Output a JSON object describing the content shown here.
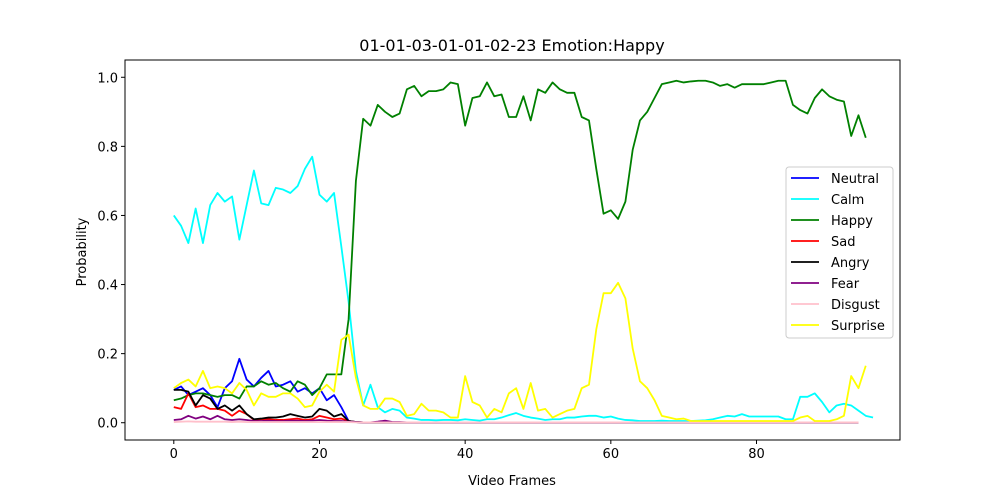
{
  "chart_data": {
    "type": "line",
    "title": "01-01-03-01-01-02-23 Emotion:Happy",
    "xlabel": "Video Frames",
    "ylabel": "Probability",
    "xlim": [
      -6.7,
      99.7
    ],
    "ylim": [
      -0.05,
      1.05
    ],
    "xticks": [
      0,
      20,
      40,
      60,
      80
    ],
    "yticks": [
      0.0,
      0.2,
      0.4,
      0.6,
      0.8,
      1.0
    ],
    "ytick_labels": [
      "0.0",
      "0.2",
      "0.4",
      "0.6",
      "0.8",
      "1.0"
    ],
    "grid": false,
    "legend_position": "center-right",
    "series": [
      {
        "name": "Neutral",
        "color": "#0000ff",
        "values": [
          0.095,
          0.105,
          0.08,
          0.09,
          0.1,
          0.08,
          0.045,
          0.1,
          0.12,
          0.185,
          0.125,
          0.105,
          0.13,
          0.15,
          0.105,
          0.11,
          0.12,
          0.09,
          0.1,
          0.085,
          0.1,
          0.065,
          0.08,
          0.045,
          0.005,
          0.002,
          0.001,
          0.001,
          0.001,
          0.001,
          0.001,
          0.001,
          0.001,
          0.001,
          0.001,
          0.001,
          0.001,
          0.001,
          0.001,
          0.001,
          0.001,
          0.001,
          0.001,
          0.001,
          0.001,
          0.001,
          0.001,
          0.001,
          0.001,
          0.001,
          0.001,
          0.001,
          0.001,
          0.001,
          0.001,
          0.001,
          0.001,
          0.001,
          0.001,
          0.001,
          0.001,
          0.001,
          0.001,
          0.001,
          0.001,
          0.001,
          0.001,
          0.001,
          0.001,
          0.001,
          0.001,
          0.001,
          0.001,
          0.001,
          0.001,
          0.001,
          0.001,
          0.001,
          0.001,
          0.001,
          0.001,
          0.001,
          0.001,
          0.001,
          0.001,
          0.001,
          0.001,
          0.001,
          0.001,
          0.001,
          0.001,
          0.001,
          0.001,
          0.001,
          0.001
        ]
      },
      {
        "name": "Calm",
        "color": "#00ffff",
        "values": [
          0.6,
          0.57,
          0.52,
          0.62,
          0.52,
          0.63,
          0.665,
          0.64,
          0.655,
          0.53,
          0.63,
          0.73,
          0.635,
          0.63,
          0.68,
          0.675,
          0.665,
          0.685,
          0.735,
          0.77,
          0.66,
          0.64,
          0.665,
          0.51,
          0.35,
          0.15,
          0.05,
          0.11,
          0.045,
          0.03,
          0.04,
          0.035,
          0.015,
          0.012,
          0.008,
          0.008,
          0.007,
          0.008,
          0.008,
          0.007,
          0.01,
          0.008,
          0.006,
          0.01,
          0.01,
          0.015,
          0.022,
          0.028,
          0.02,
          0.015,
          0.012,
          0.008,
          0.01,
          0.01,
          0.015,
          0.015,
          0.018,
          0.02,
          0.02,
          0.015,
          0.018,
          0.012,
          0.008,
          0.007,
          0.005,
          0.005,
          0.005,
          0.006,
          0.005,
          0.005,
          0.005,
          0.005,
          0.006,
          0.007,
          0.01,
          0.015,
          0.02,
          0.018,
          0.025,
          0.018,
          0.018,
          0.018,
          0.018,
          0.018,
          0.01,
          0.01,
          0.075,
          0.075,
          0.085,
          0.06,
          0.03,
          0.05,
          0.055,
          0.05,
          0.035,
          0.02,
          0.015
        ]
      },
      {
        "name": "Happy",
        "color": "#008000",
        "values": [
          0.065,
          0.07,
          0.08,
          0.085,
          0.085,
          0.08,
          0.075,
          0.08,
          0.08,
          0.07,
          0.105,
          0.105,
          0.12,
          0.11,
          0.115,
          0.1,
          0.09,
          0.12,
          0.11,
          0.08,
          0.1,
          0.14,
          0.14,
          0.14,
          0.3,
          0.7,
          0.88,
          0.86,
          0.92,
          0.9,
          0.885,
          0.895,
          0.965,
          0.975,
          0.945,
          0.96,
          0.96,
          0.965,
          0.985,
          0.98,
          0.86,
          0.94,
          0.945,
          0.985,
          0.945,
          0.95,
          0.885,
          0.885,
          0.945,
          0.875,
          0.965,
          0.955,
          0.985,
          0.965,
          0.955,
          0.955,
          0.885,
          0.875,
          0.735,
          0.605,
          0.615,
          0.59,
          0.64,
          0.79,
          0.875,
          0.9,
          0.94,
          0.98,
          0.985,
          0.99,
          0.985,
          0.988,
          0.99,
          0.99,
          0.985,
          0.975,
          0.98,
          0.97,
          0.98,
          0.98,
          0.98,
          0.98,
          0.985,
          0.99,
          0.99,
          0.92,
          0.905,
          0.895,
          0.94,
          0.965,
          0.945,
          0.935,
          0.93,
          0.83,
          0.89,
          0.825
        ]
      },
      {
        "name": "Sad",
        "color": "#ff0000",
        "values": [
          0.045,
          0.04,
          0.085,
          0.045,
          0.05,
          0.04,
          0.04,
          0.035,
          0.02,
          0.035,
          0.025,
          0.008,
          0.01,
          0.01,
          0.008,
          0.008,
          0.01,
          0.012,
          0.008,
          0.01,
          0.02,
          0.015,
          0.01,
          0.012,
          0.005,
          0.002,
          0.001,
          0.001,
          0.001,
          0.001,
          0.001,
          0.001,
          0.001,
          0.001,
          0.001,
          0.001,
          0.001,
          0.001,
          0.001,
          0.001,
          0.001,
          0.001,
          0.001,
          0.001,
          0.001,
          0.001,
          0.001,
          0.001,
          0.001,
          0.001,
          0.001,
          0.001,
          0.001,
          0.001,
          0.001,
          0.001,
          0.001,
          0.001,
          0.001,
          0.001,
          0.001,
          0.001,
          0.001,
          0.001,
          0.001,
          0.001,
          0.001,
          0.001,
          0.001,
          0.001,
          0.001,
          0.001,
          0.001,
          0.001,
          0.001,
          0.001,
          0.001,
          0.001,
          0.001,
          0.001,
          0.001,
          0.001,
          0.001,
          0.001,
          0.001,
          0.001,
          0.001,
          0.001,
          0.001,
          0.001,
          0.001,
          0.001,
          0.001,
          0.001,
          0.001
        ]
      },
      {
        "name": "Angry",
        "color": "#000000",
        "values": [
          0.095,
          0.095,
          0.09,
          0.05,
          0.08,
          0.07,
          0.04,
          0.05,
          0.035,
          0.05,
          0.025,
          0.01,
          0.012,
          0.015,
          0.015,
          0.018,
          0.025,
          0.02,
          0.015,
          0.018,
          0.04,
          0.035,
          0.018,
          0.025,
          0.005,
          0.002,
          0.001,
          0.001,
          0.001,
          0.001,
          0.001,
          0.001,
          0.001,
          0.001,
          0.001,
          0.001,
          0.001,
          0.001,
          0.001,
          0.001,
          0.001,
          0.001,
          0.001,
          0.001,
          0.001,
          0.001,
          0.001,
          0.001,
          0.001,
          0.001,
          0.001,
          0.001,
          0.001,
          0.001,
          0.001,
          0.001,
          0.001,
          0.001,
          0.001,
          0.001,
          0.001,
          0.001,
          0.001,
          0.001,
          0.001,
          0.001,
          0.001,
          0.001,
          0.001,
          0.001,
          0.001,
          0.001,
          0.001,
          0.001,
          0.001,
          0.001,
          0.001,
          0.001,
          0.001,
          0.001,
          0.001,
          0.001,
          0.001,
          0.001,
          0.001,
          0.001,
          0.001,
          0.001,
          0.001,
          0.001,
          0.001,
          0.001,
          0.001,
          0.001,
          0.001
        ]
      },
      {
        "name": "Fear",
        "color": "#800080",
        "values": [
          0.008,
          0.01,
          0.02,
          0.012,
          0.018,
          0.01,
          0.02,
          0.01,
          0.008,
          0.01,
          0.008,
          0.005,
          0.005,
          0.006,
          0.005,
          0.005,
          0.006,
          0.006,
          0.005,
          0.006,
          0.008,
          0.006,
          0.005,
          0.005,
          0.003,
          0.002,
          0.001,
          0.001,
          0.003,
          0.006,
          0.002,
          0.002,
          0.001,
          0.001,
          0.001,
          0.001,
          0.001,
          0.001,
          0.001,
          0.001,
          0.001,
          0.001,
          0.001,
          0.001,
          0.001,
          0.001,
          0.001,
          0.001,
          0.001,
          0.001,
          0.001,
          0.001,
          0.001,
          0.001,
          0.001,
          0.001,
          0.001,
          0.001,
          0.001,
          0.001,
          0.001,
          0.001,
          0.001,
          0.001,
          0.001,
          0.001,
          0.001,
          0.001,
          0.001,
          0.001,
          0.001,
          0.001,
          0.001,
          0.001,
          0.001,
          0.001,
          0.001,
          0.001,
          0.001,
          0.001,
          0.001,
          0.001,
          0.001,
          0.001,
          0.001,
          0.001,
          0.001,
          0.001,
          0.001,
          0.001,
          0.001,
          0.001,
          0.001,
          0.001,
          0.001
        ]
      },
      {
        "name": "Disgust",
        "color": "#ffc0cb",
        "values": [
          0.002,
          0.003,
          0.004,
          0.003,
          0.003,
          0.003,
          0.003,
          0.003,
          0.002,
          0.003,
          0.002,
          0.002,
          0.002,
          0.002,
          0.002,
          0.002,
          0.002,
          0.002,
          0.002,
          0.002,
          0.002,
          0.002,
          0.002,
          0.002,
          0.002,
          0.001,
          0.001,
          0.001,
          0.001,
          0.001,
          0.001,
          0.001,
          0.001,
          0.001,
          0.001,
          0.001,
          0.001,
          0.001,
          0.001,
          0.001,
          0.001,
          0.001,
          0.001,
          0.001,
          0.001,
          0.001,
          0.001,
          0.001,
          0.001,
          0.001,
          0.001,
          0.001,
          0.001,
          0.001,
          0.001,
          0.001,
          0.001,
          0.001,
          0.001,
          0.001,
          0.001,
          0.001,
          0.001,
          0.001,
          0.001,
          0.001,
          0.001,
          0.001,
          0.001,
          0.001,
          0.001,
          0.001,
          0.001,
          0.001,
          0.001,
          0.001,
          0.001,
          0.001,
          0.001,
          0.001,
          0.001,
          0.001,
          0.001,
          0.001,
          0.001,
          0.001,
          0.001,
          0.001,
          0.001,
          0.001,
          0.001,
          0.001,
          0.001,
          0.001,
          0.001
        ]
      },
      {
        "name": "Surprise",
        "color": "#ffff00",
        "values": [
          0.1,
          0.115,
          0.125,
          0.105,
          0.15,
          0.1,
          0.105,
          0.1,
          0.085,
          0.115,
          0.095,
          0.05,
          0.085,
          0.075,
          0.075,
          0.085,
          0.085,
          0.07,
          0.045,
          0.05,
          0.09,
          0.11,
          0.09,
          0.24,
          0.255,
          0.13,
          0.05,
          0.04,
          0.04,
          0.07,
          0.07,
          0.06,
          0.02,
          0.025,
          0.055,
          0.035,
          0.035,
          0.03,
          0.015,
          0.015,
          0.135,
          0.06,
          0.05,
          0.015,
          0.04,
          0.03,
          0.085,
          0.1,
          0.04,
          0.115,
          0.035,
          0.04,
          0.015,
          0.025,
          0.035,
          0.04,
          0.1,
          0.11,
          0.27,
          0.375,
          0.375,
          0.405,
          0.36,
          0.215,
          0.12,
          0.1,
          0.065,
          0.02,
          0.015,
          0.01,
          0.012,
          0.005,
          0.005,
          0.005,
          0.005,
          0.005,
          0.005,
          0.005,
          0.005,
          0.005,
          0.005,
          0.005,
          0.005,
          0.005,
          0.005,
          0.005,
          0.015,
          0.02,
          0.005,
          0.005,
          0.005,
          0.01,
          0.02,
          0.135,
          0.1,
          0.165
        ]
      }
    ]
  }
}
